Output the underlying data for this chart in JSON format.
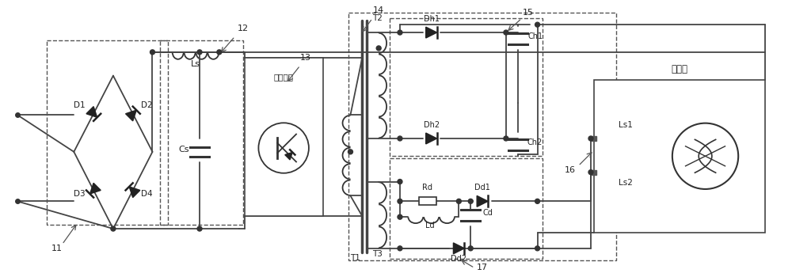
{
  "bg_color": "#ffffff",
  "fig_width": 10.0,
  "fig_height": 3.45,
  "labels": {
    "D1": "D1",
    "D2": "D2",
    "D3": "D3",
    "D4": "D4",
    "Ls": "Ls",
    "Cs": "Cs",
    "switch": "开关电路",
    "T1": "T1",
    "T2": "T2",
    "T3": "T3",
    "Dh1": "Dh1",
    "Dh2": "Dh2",
    "Ch1": "Ch1",
    "Ch2": "Ch2",
    "Rd": "Rd",
    "Ld": "Ld",
    "Cd": "Cd",
    "Dd1": "Dd1",
    "Dd2": "Dd2",
    "Ls1": "Ls1",
    "Ls2": "Ls2",
    "mag": "磁控管",
    "n11": "11",
    "n12": "12",
    "n13": "13",
    "n14": "14",
    "n15": "15",
    "n16": "16",
    "n17": "17"
  }
}
